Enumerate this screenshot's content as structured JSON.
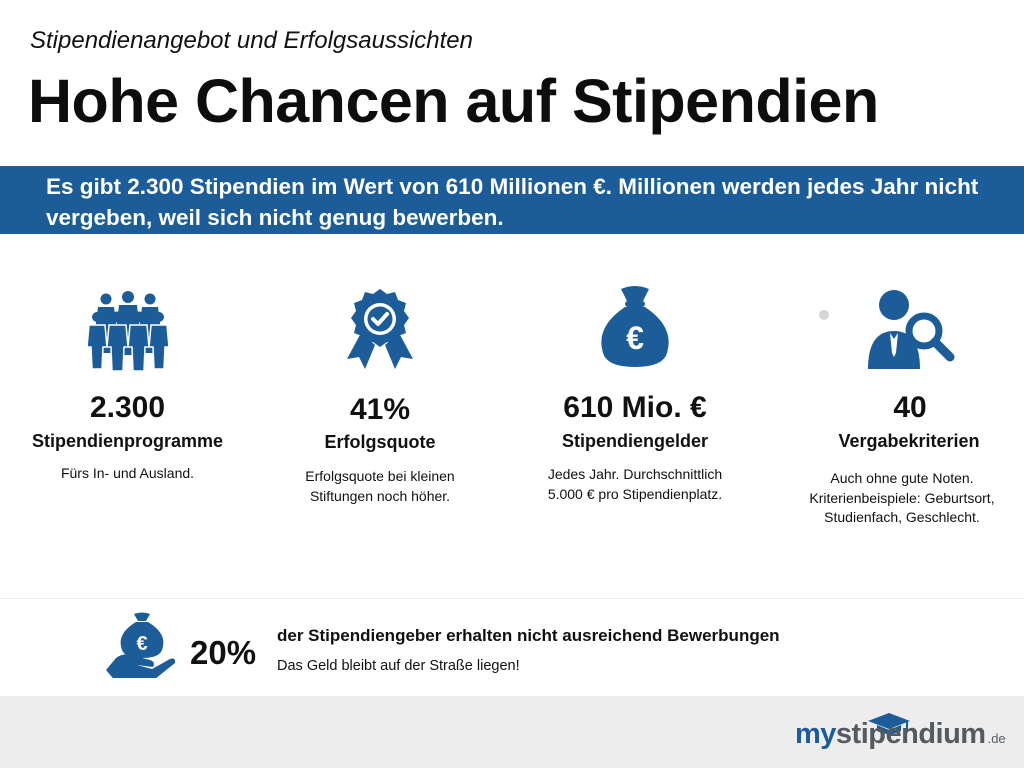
{
  "header": {
    "subtitle": "Stipendienangebot und Erfolgsaussichten",
    "title": "Hohe Chancen auf Stipendien"
  },
  "banner": {
    "text": "Es gibt 2.300 Stipendien im Wert von 610 Millionen €. Millionen werden jedes Jahr nicht vergeben, weil sich nicht genug bewerben."
  },
  "stats": [
    {
      "icon": "people-group-icon",
      "value": "2.300",
      "label": "Stipendienprogramme",
      "desc": "Fürs In- und Ausland."
    },
    {
      "icon": "award-badge-icon",
      "value": "41%",
      "label": "Erfolgsquote",
      "desc": "Erfolgsquote bei kleinen Stiftungen noch höher."
    },
    {
      "icon": "money-bag-euro-icon",
      "value": "610 Mio. €",
      "label": "Stipendiengelder",
      "desc": "Jedes Jahr. Durchschnittlich 5.000 € pro Stipendienplatz."
    },
    {
      "icon": "person-search-icon",
      "value": "40",
      "label": "Vergabekriterien",
      "desc": "Auch ohne gute Noten. Kriterienbeispiele: Geburtsort, Studienfach, Geschlecht."
    }
  ],
  "bottom": {
    "icon": "hand-money-bag-icon",
    "value": "20%",
    "headline": "der Stipendiengeber erhalten nicht ausreichend Bewerbungen",
    "sub": "Das Geld bleibt auf der Straße liegen!"
  },
  "logo": {
    "my": "my",
    "rest": "stipendium",
    "tld": ".de"
  },
  "colors": {
    "accent": "#1c5c99",
    "footer": "#ededed"
  }
}
